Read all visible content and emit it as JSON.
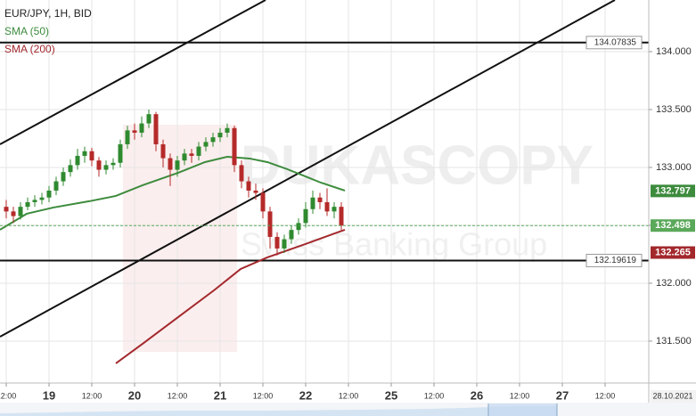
{
  "chart_data": {
    "type": "candlestick",
    "title": "EUR/JPY, 1H, BID",
    "x": [
      0,
      2,
      4,
      6,
      8,
      10,
      12,
      14,
      16,
      18,
      20,
      22,
      24,
      26,
      28,
      30,
      32,
      34,
      36,
      38,
      40,
      42,
      44,
      46,
      48,
      50,
      52,
      54,
      56,
      58,
      60,
      62,
      64,
      66,
      68,
      70,
      72,
      74,
      76,
      78,
      80,
      82,
      84,
      86,
      88,
      90,
      92,
      94
    ],
    "open": [
      132.66,
      132.62,
      132.58,
      132.66,
      132.7,
      132.72,
      132.74,
      132.8,
      132.88,
      132.96,
      133.02,
      133.1,
      133.14,
      133.06,
      132.98,
      133.02,
      133.04,
      133.2,
      133.32,
      133.3,
      133.38,
      133.46,
      133.2,
      133.08,
      132.98,
      133.06,
      133.12,
      133.1,
      133.18,
      133.22,
      133.26,
      133.3,
      133.34,
      133.02,
      132.88,
      132.8,
      132.78,
      132.62,
      132.4,
      132.3,
      132.38,
      132.46,
      132.52,
      132.64,
      132.74,
      132.7,
      132.62,
      132.66
    ],
    "high": [
      132.72,
      132.66,
      132.7,
      132.74,
      132.76,
      132.78,
      132.84,
      132.92,
      133.0,
      133.07,
      133.16,
      133.18,
      133.17,
      133.09,
      133.06,
      133.08,
      133.24,
      133.36,
      133.38,
      133.44,
      133.5,
      133.48,
      133.24,
      133.12,
      133.1,
      133.16,
      133.16,
      133.22,
      133.26,
      133.3,
      133.34,
      133.38,
      133.36,
      133.06,
      132.92,
      132.86,
      132.82,
      132.66,
      132.44,
      132.42,
      132.5,
      132.56,
      132.7,
      132.8,
      132.78,
      132.82,
      132.7,
      132.7
    ],
    "low": [
      132.56,
      132.52,
      132.55,
      132.63,
      132.66,
      132.68,
      132.7,
      132.76,
      132.84,
      132.92,
      132.98,
      133.04,
      133.01,
      132.92,
      132.94,
      132.98,
      133.0,
      133.16,
      133.24,
      133.26,
      133.34,
      133.14,
      133.0,
      132.84,
      132.92,
      133.02,
      133.04,
      133.06,
      133.14,
      133.18,
      133.22,
      133.26,
      132.96,
      132.82,
      132.74,
      132.72,
      132.56,
      132.3,
      132.24,
      132.26,
      132.34,
      132.42,
      132.48,
      132.6,
      132.64,
      132.58,
      132.56,
      132.46
    ],
    "close": [
      132.62,
      132.58,
      132.66,
      132.7,
      132.72,
      132.74,
      132.8,
      132.88,
      132.96,
      133.02,
      133.1,
      133.14,
      133.06,
      132.98,
      133.02,
      133.04,
      133.2,
      133.32,
      133.3,
      133.38,
      133.46,
      133.2,
      133.08,
      132.98,
      133.06,
      133.12,
      133.1,
      133.18,
      133.22,
      133.26,
      133.3,
      133.34,
      133.02,
      132.88,
      132.8,
      132.78,
      132.62,
      132.4,
      132.3,
      132.38,
      132.46,
      132.52,
      132.64,
      132.74,
      132.7,
      132.62,
      132.66,
      132.498
    ],
    "up_color": "#2f8a2f",
    "down_color": "#b52a2a",
    "series": [
      {
        "name": "SMA (50)",
        "color": "#3d8b3d",
        "badge_color": "#3d8b3d",
        "x": [
          -1.75,
          5.75,
          13.25,
          23.25,
          30.75,
          38.25,
          48.25,
          55.75,
          62,
          68.25,
          73.25,
          78.25,
          83.25,
          88.25,
          95
        ],
        "values": [
          132.462,
          132.6,
          132.654,
          132.708,
          132.754,
          132.846,
          132.954,
          133.046,
          133.092,
          133.077,
          133.046,
          132.992,
          132.931,
          132.869,
          132.8
        ],
        "last_value": 132.797
      },
      {
        "name": "SMA (200)",
        "color": "#a3282c",
        "badge_color": "#a3282c",
        "x": [
          30.75,
          38.25,
          48.25,
          58.25,
          65.75,
          73.25,
          83.25,
          95
        ],
        "values": [
          131.308,
          131.477,
          131.708,
          131.938,
          132.123,
          132.223,
          132.331,
          132.462
        ],
        "last_value": 132.265
      }
    ],
    "price_color": "#5aa85a",
    "levels": [
      134.07835,
      132.19619
    ],
    "trendlines": [
      {
        "x": [
          -1.75,
          72.75
        ],
        "values": [
          133.2,
          134.446
        ]
      },
      {
        "x": [
          -1.75,
          170.75
        ],
        "values": [
          131.538,
          134.446
        ]
      }
    ],
    "xlim": [
      -1.75,
      180.25
    ],
    "ylim": [
      131.138,
      134.446
    ],
    "xticks": [
      {
        "value": 0,
        "label": "12:00"
      },
      {
        "value": 12,
        "label": "19"
      },
      {
        "value": 24,
        "label": "12:00"
      },
      {
        "value": 36,
        "label": "20"
      },
      {
        "value": 48,
        "label": "12:00"
      },
      {
        "value": 60,
        "label": "21"
      },
      {
        "value": 72,
        "label": "12:00"
      },
      {
        "value": 84,
        "label": "22"
      },
      {
        "value": 96,
        "label": "12:00"
      },
      {
        "value": 108,
        "label": "25"
      },
      {
        "value": 120,
        "label": "12:00"
      },
      {
        "value": 132,
        "label": "26"
      },
      {
        "value": 144,
        "label": "12:00"
      },
      {
        "value": 156,
        "label": "27"
      },
      {
        "value": 168,
        "label": "12:00"
      }
    ],
    "yticks": [
      {
        "value": 134,
        "label": "134.000"
      },
      {
        "value": 133.5,
        "label": "133.500"
      },
      {
        "value": 133,
        "label": "133.000"
      },
      {
        "value": 132.5,
        "label": "132.500"
      },
      {
        "value": 132,
        "label": "132.000"
      },
      {
        "value": 131.5,
        "label": "131.500"
      }
    ],
    "grid": true,
    "date_marker": "28.10.2021",
    "watermark": [
      "DUKASCOPY",
      "Swiss Banking Group"
    ]
  }
}
